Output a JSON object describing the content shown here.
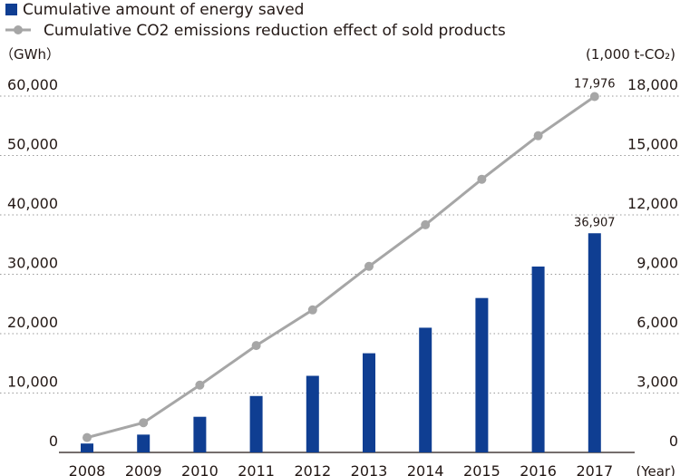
{
  "chart_data": {
    "type": "bar",
    "categories": [
      "2008",
      "2009",
      "2010",
      "2011",
      "2012",
      "2013",
      "2014",
      "2015",
      "2016",
      "2017"
    ],
    "series": [
      {
        "name": "Cumulative amount of energy saved",
        "type": "bar",
        "axis": "left",
        "color": "#0f3e92",
        "values": [
          1500,
          3000,
          6000,
          9500,
          12900,
          16700,
          21000,
          26000,
          31300,
          36907
        ]
      },
      {
        "name": "Cumulative CO2 emissions reduction effect of sold products",
        "type": "line",
        "axis": "right",
        "color": "#a6a6a6",
        "values": [
          750,
          1500,
          3400,
          5400,
          7200,
          9400,
          11500,
          13800,
          16000,
          17976
        ]
      }
    ],
    "ylabel_left": "（GWh）",
    "ylabel_right": "(1,000 t-CO₂)",
    "xlabel": "(Year)",
    "ylim_left": [
      0,
      60000
    ],
    "ylim_right": [
      0,
      18000
    ],
    "yticks_left": [
      "0",
      "10,000",
      "20,000",
      "30,000",
      "40,000",
      "50,000",
      "60,000"
    ],
    "yticks_right": [
      "0",
      "3,000",
      "6,000",
      "9,000",
      "12,000",
      "15,000",
      "18,000"
    ],
    "data_labels": [
      {
        "series": 0,
        "index": 9,
        "text": "36,907"
      },
      {
        "series": 1,
        "index": 9,
        "text": "17,976"
      }
    ],
    "grid": true,
    "legend_position": "top-left"
  }
}
